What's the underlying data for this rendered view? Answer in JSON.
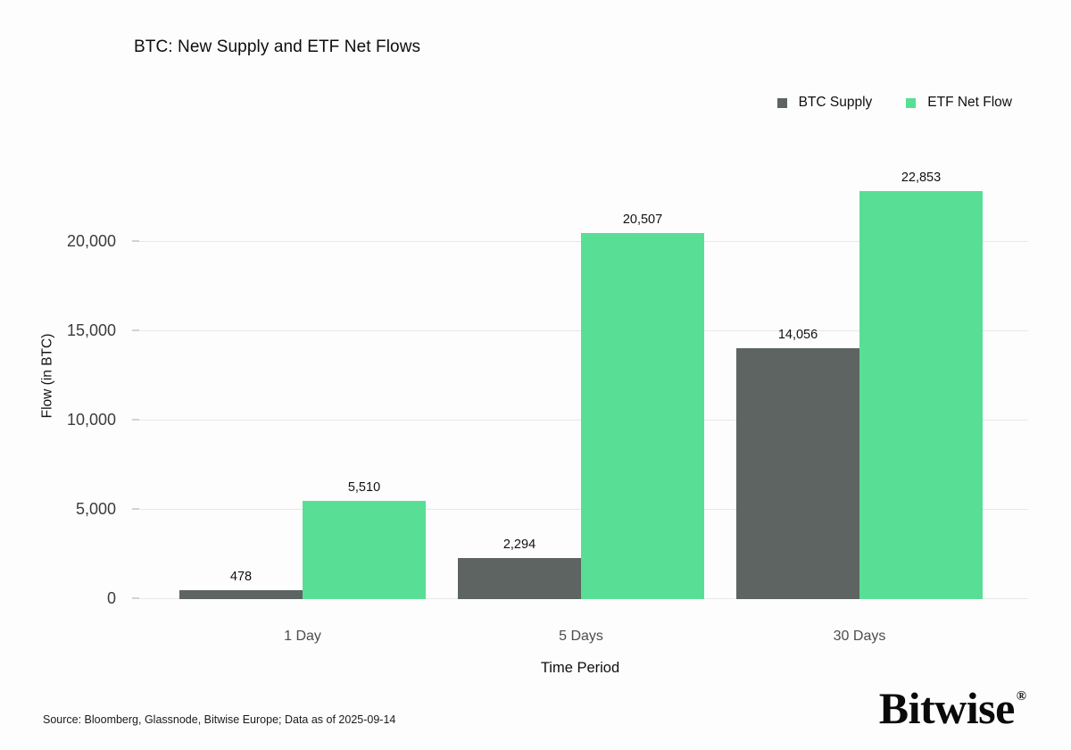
{
  "title": "BTC: New Supply and ETF Net Flows",
  "legend": [
    {
      "label": "BTC Supply",
      "color": "#5d6462"
    },
    {
      "label": "ETF Net Flow",
      "color": "#59de95"
    }
  ],
  "chart_data": {
    "type": "bar",
    "title": "BTC: New Supply and ETF Net Flows",
    "categories": [
      "1 Day",
      "5 Days",
      "30 Days"
    ],
    "series": [
      {
        "name": "BTC Supply",
        "color": "#5d6462",
        "values": [
          478,
          2294,
          14056
        ]
      },
      {
        "name": "ETF Net Flow",
        "color": "#59de95",
        "values": [
          5510,
          20507,
          22853
        ]
      }
    ],
    "value_labels": [
      [
        "478",
        "2,294",
        "14,056"
      ],
      [
        "5,510",
        "20,507",
        "22,853"
      ]
    ],
    "xlabel": "Time Period",
    "ylabel": "Flow (in BTC)",
    "yticks": [
      0,
      5000,
      10000,
      15000,
      20000
    ],
    "ytick_labels": [
      "0",
      "5,000",
      "10,000",
      "15,000",
      "20,000"
    ],
    "ylim": [
      0,
      25050
    ],
    "grid": true,
    "legend_position": "top-right"
  },
  "footer": {
    "source": "Source: Bloomberg, Glassnode, Bitwise Europe; Data as of 2025-09-14",
    "brand": "Bitwise",
    "registered_mark": "®"
  },
  "colors": {
    "background": "#fdfdfd",
    "gridline": "#e8e8e8",
    "btc_supply_bar": "#5d6462",
    "etf_net_flow_bar": "#59de95"
  }
}
